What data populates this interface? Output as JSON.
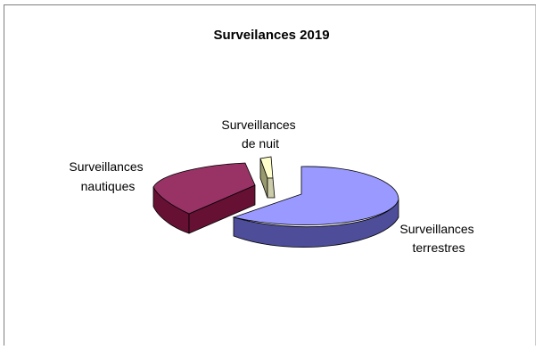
{
  "chart_data": {
    "type": "pie",
    "title": "Surveilances 2019",
    "three_d": true,
    "exploded": true,
    "legend": "none",
    "slices": [
      {
        "label_lines": [
          "Surveillances",
          "terrestres"
        ],
        "value": 70,
        "color": "#9999ff"
      },
      {
        "label_lines": [
          "Surveillances",
          "nautiques"
        ],
        "value": 27,
        "color": "#993366"
      },
      {
        "label_lines": [
          "Surveillances",
          "de nuit"
        ],
        "value": 3,
        "color": "#ffffcc"
      }
    ]
  }
}
